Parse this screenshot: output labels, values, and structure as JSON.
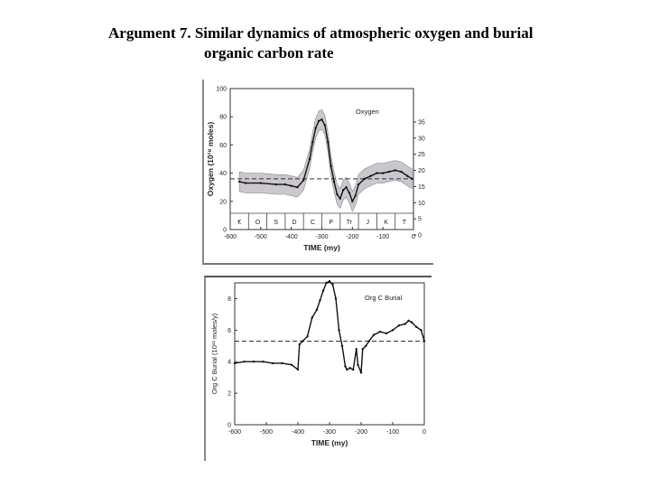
{
  "slide": {
    "title_line1": "Argument 7.  Similar dynamics of atmospheric oxygen and burial",
    "title_line2": "organic carbon rate"
  },
  "chart_data": [
    {
      "type": "line",
      "legend": "Oxygen",
      "ylabel": "Oxygen (10¹⁸ moles)",
      "xlabel": "TIME  (my)",
      "xlim": [
        -600,
        0
      ],
      "ylim": [
        0,
        100
      ],
      "x_ticks": [
        "-600",
        "-500",
        "-400",
        "-300",
        "-200",
        "-100",
        "0"
      ],
      "y_ticks": [
        "0",
        "20",
        "40",
        "60",
        "80",
        "100"
      ],
      "right_ticks": [
        "0",
        "5",
        "10",
        "15",
        "20",
        "25",
        "30",
        "35"
      ],
      "periods": [
        "€",
        "O",
        "S",
        "D",
        "C",
        "P",
        "Tr",
        "J",
        "K",
        "T"
      ],
      "reference_level": 36,
      "series": [
        {
          "x": [
            -570,
            -550,
            -500,
            -450,
            -420,
            -400,
            -380,
            -360,
            -340,
            -330,
            -320,
            -310,
            -300,
            -290,
            -280,
            -270,
            -260,
            -250,
            -240,
            -230,
            -220,
            -210,
            -200,
            -190,
            -180,
            -160,
            -140,
            -120,
            -100,
            -80,
            -60,
            -40,
            -20,
            -5
          ],
          "values": [
            34,
            33,
            33,
            32,
            32,
            31,
            30,
            35,
            50,
            62,
            72,
            77,
            78,
            74,
            62,
            45,
            34,
            25,
            22,
            28,
            30,
            26,
            20,
            24,
            32,
            36,
            38,
            40,
            40,
            41,
            42,
            41,
            38,
            36
          ]
        }
      ]
    },
    {
      "type": "line",
      "legend": "Org C Burial",
      "ylabel": "Org C Burial  (10¹² moles/y)",
      "xlabel": "TIME  (my)",
      "xlim": [
        -600,
        0
      ],
      "ylim": [
        0,
        9
      ],
      "x_ticks": [
        "-600",
        "-500",
        "-400",
        "-300",
        "-200",
        "-100",
        "0"
      ],
      "y_ticks": [
        "0",
        "2",
        "4",
        "6",
        "8"
      ],
      "reference_level": 5.3,
      "series": [
        {
          "x": [
            -600,
            -570,
            -540,
            -510,
            -480,
            -450,
            -420,
            -400,
            -395,
            -385,
            -370,
            -355,
            -340,
            -330,
            -320,
            -310,
            -300,
            -290,
            -280,
            -270,
            -260,
            -250,
            -245,
            -235,
            -225,
            -215,
            -210,
            -200,
            -195,
            -185,
            -175,
            -160,
            -140,
            -120,
            -100,
            -80,
            -60,
            -50,
            -40,
            -25,
            -10,
            0
          ],
          "values": [
            3.9,
            4.0,
            4.0,
            4.0,
            3.9,
            3.9,
            3.8,
            3.5,
            5.1,
            5.3,
            5.6,
            6.8,
            7.3,
            7.9,
            8.5,
            9.0,
            9.1,
            8.9,
            8.0,
            6.0,
            5.0,
            3.7,
            3.5,
            3.6,
            3.5,
            4.8,
            3.8,
            3.3,
            4.8,
            5.0,
            5.3,
            5.7,
            5.9,
            5.8,
            6.0,
            6.3,
            6.4,
            6.6,
            6.5,
            6.2,
            6.0,
            5.3
          ]
        }
      ]
    }
  ]
}
